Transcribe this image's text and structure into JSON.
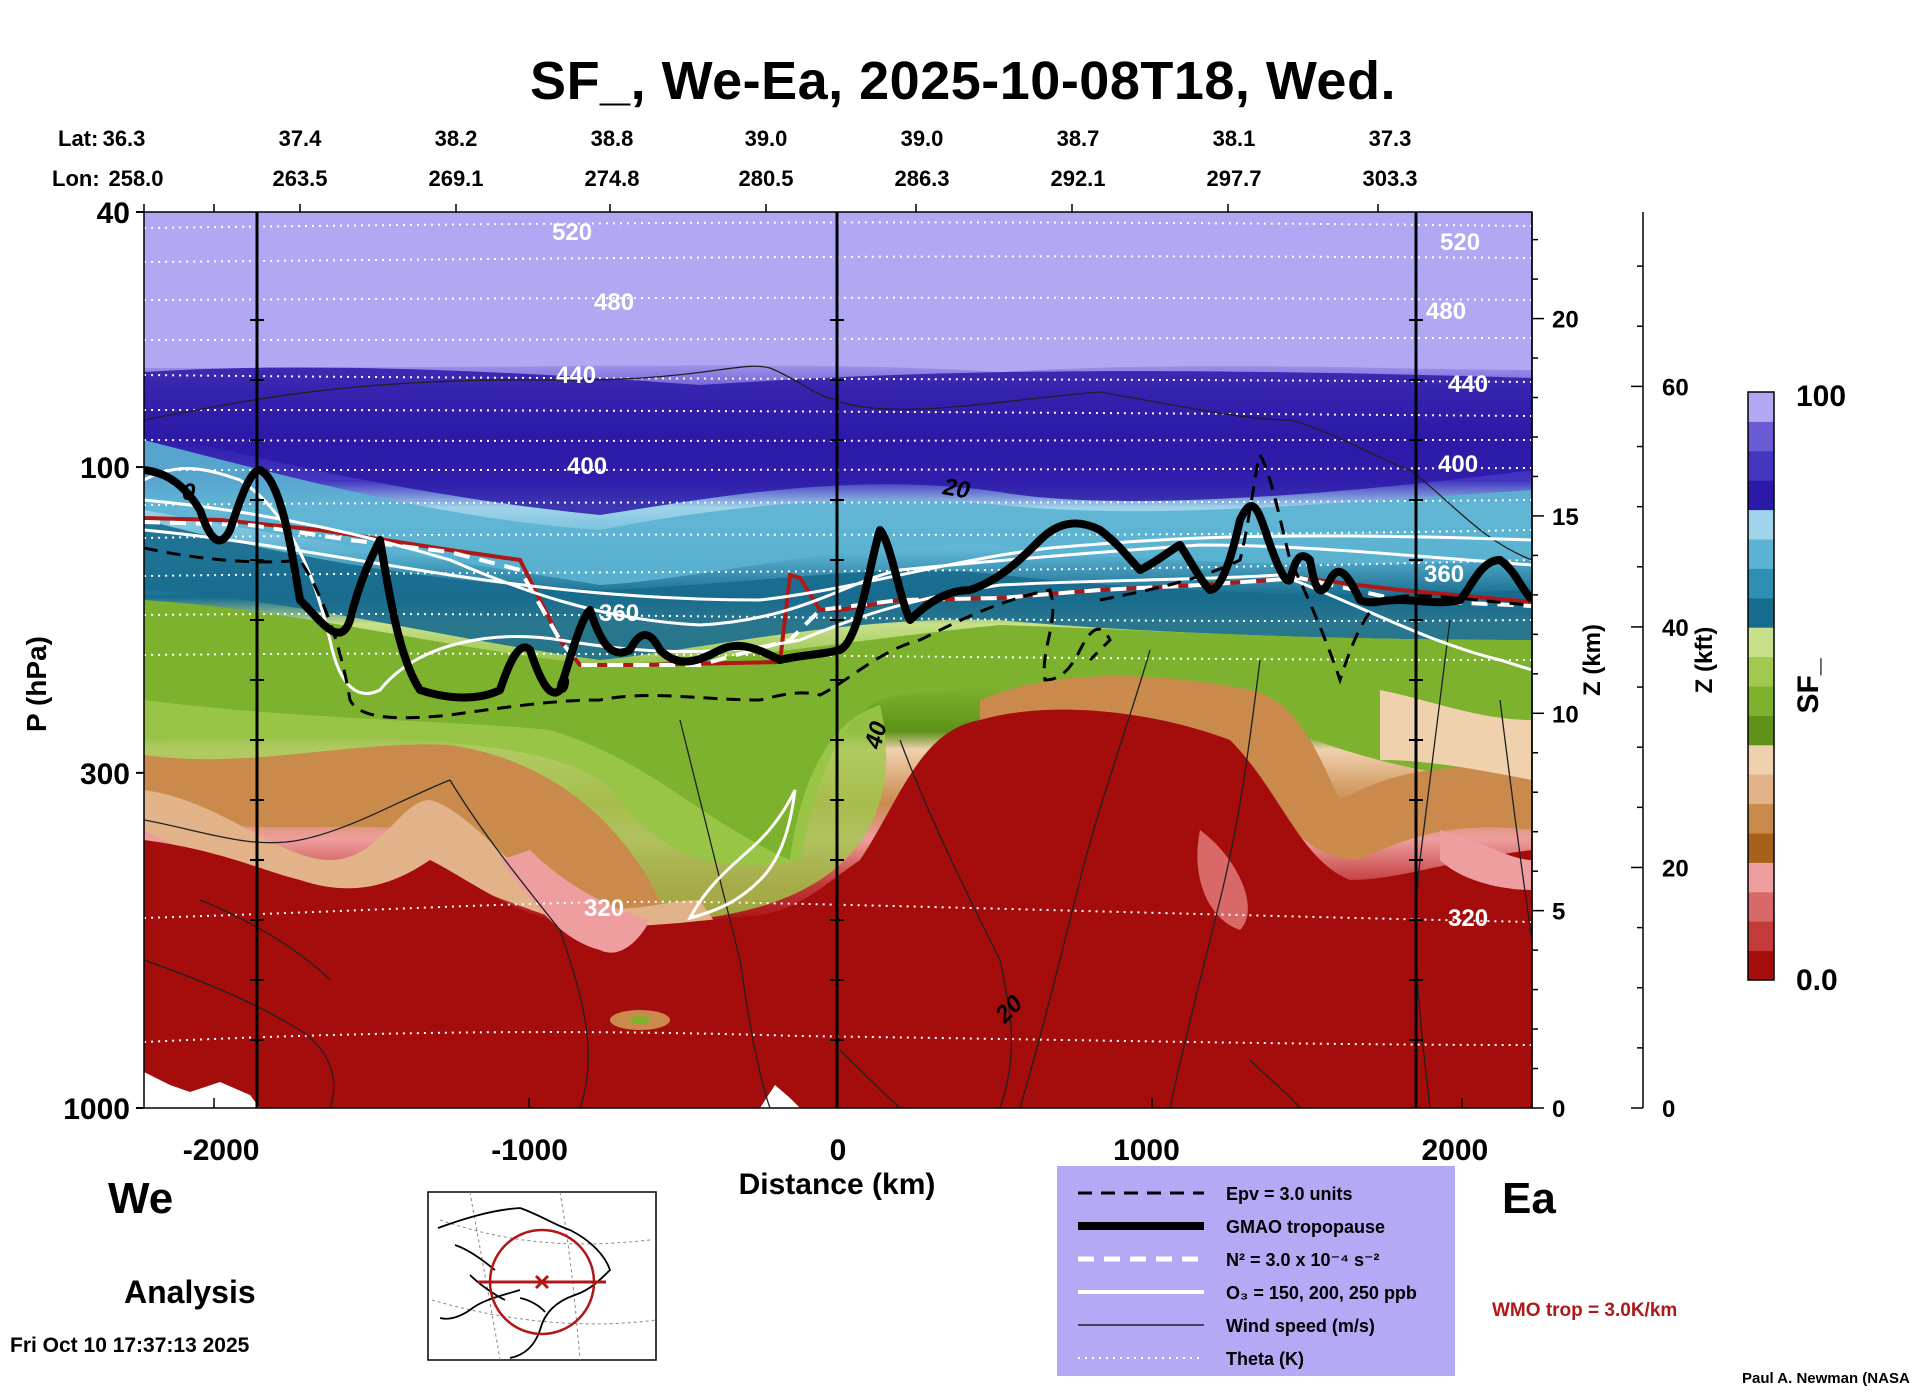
{
  "header": {
    "title": "SF_, We-Ea, 2025-10-08T18, Wed.",
    "lat_label": "Lat:",
    "lon_label": "Lon:",
    "lat_values": [
      "36.3",
      "37.4",
      "38.2",
      "38.8",
      "39.0",
      "39.0",
      "38.7",
      "38.1",
      "37.3"
    ],
    "lon_values": [
      "258.0",
      "263.5",
      "269.1",
      "274.8",
      "280.5",
      "286.3",
      "292.1",
      "297.7",
      "303.3"
    ]
  },
  "chart_data": {
    "type": "heatmap",
    "title": "SF_, We-Ea, 2025-10-08T18, Wed.",
    "xlabel": "Distance (km)",
    "ylabel": "P (hPa)",
    "xlim": [
      -2250,
      2250
    ],
    "ylim_pressure": [
      1000,
      40
    ],
    "x_ticks": [
      -2000,
      -1000,
      0,
      1000,
      2000
    ],
    "x_tick_labels": [
      "-2000",
      "-1000",
      "0",
      "1000",
      "2000"
    ],
    "y_ticks": [
      40,
      100,
      300,
      1000
    ],
    "y_tick_labels": [
      "40",
      "100",
      "300",
      "1000"
    ],
    "z_km_label": "Z (km)",
    "z_km_ticks": [
      0,
      5,
      10,
      15,
      20
    ],
    "z_km_tick_labels": [
      "0",
      "5",
      "10",
      "15",
      "20"
    ],
    "z_kft_label": "Z (kft)",
    "z_kft_ticks": [
      0,
      20,
      40,
      60
    ],
    "z_kft_tick_labels": [
      "0",
      "20",
      "40",
      "60"
    ],
    "colorbar": {
      "label": "SF_",
      "min": 0.0,
      "max": 100,
      "min_label": "0.0",
      "max_label": "100",
      "colors": [
        "#a50d0d",
        "#c23a3a",
        "#d96868",
        "#ee9e9e",
        "#a8611b",
        "#c98a4c",
        "#e2b388",
        "#efd1ae",
        "#5e9218",
        "#7cb22d",
        "#a0c94e",
        "#c8e08a",
        "#186c8e",
        "#2e8fb2",
        "#5bb2d2",
        "#9fd4ea",
        "#2b1aa8",
        "#4436c0",
        "#6a5cd4",
        "#b0a8f2"
      ]
    },
    "theta_labels": [
      "520",
      "480",
      "440",
      "400",
      "360",
      "320"
    ],
    "wind_labels": [
      "20",
      "40",
      "0"
    ],
    "sections": [
      "-1850",
      "0",
      "1850"
    ]
  },
  "annotations": {
    "west": "We",
    "east": "Ea",
    "analysis": "Analysis",
    "timestamp": "Fri Oct 10 17:37:13 2025",
    "credit": "Paul A. Newman (NASA",
    "wmo_trop": "WMO trop = 3.0K/km"
  },
  "legend": {
    "items": [
      {
        "style": "dashed-black",
        "label": "Epv = 3.0 units"
      },
      {
        "style": "thick-black",
        "label": "GMAO tropopause"
      },
      {
        "style": "dashed-white",
        "label": "N² = 3.0 x 10⁻⁴ s⁻²"
      },
      {
        "style": "solid-white",
        "label": "O₃ = 150, 200, 250 ppb"
      },
      {
        "style": "thin-black",
        "label": "Wind speed (m/s)"
      },
      {
        "style": "dotted-white",
        "label": "Theta (K)"
      }
    ]
  },
  "colors": {
    "legend_bg": "#b3a9f5",
    "trop_red": "#b01818",
    "stratosphere": "#b0a8f2"
  }
}
